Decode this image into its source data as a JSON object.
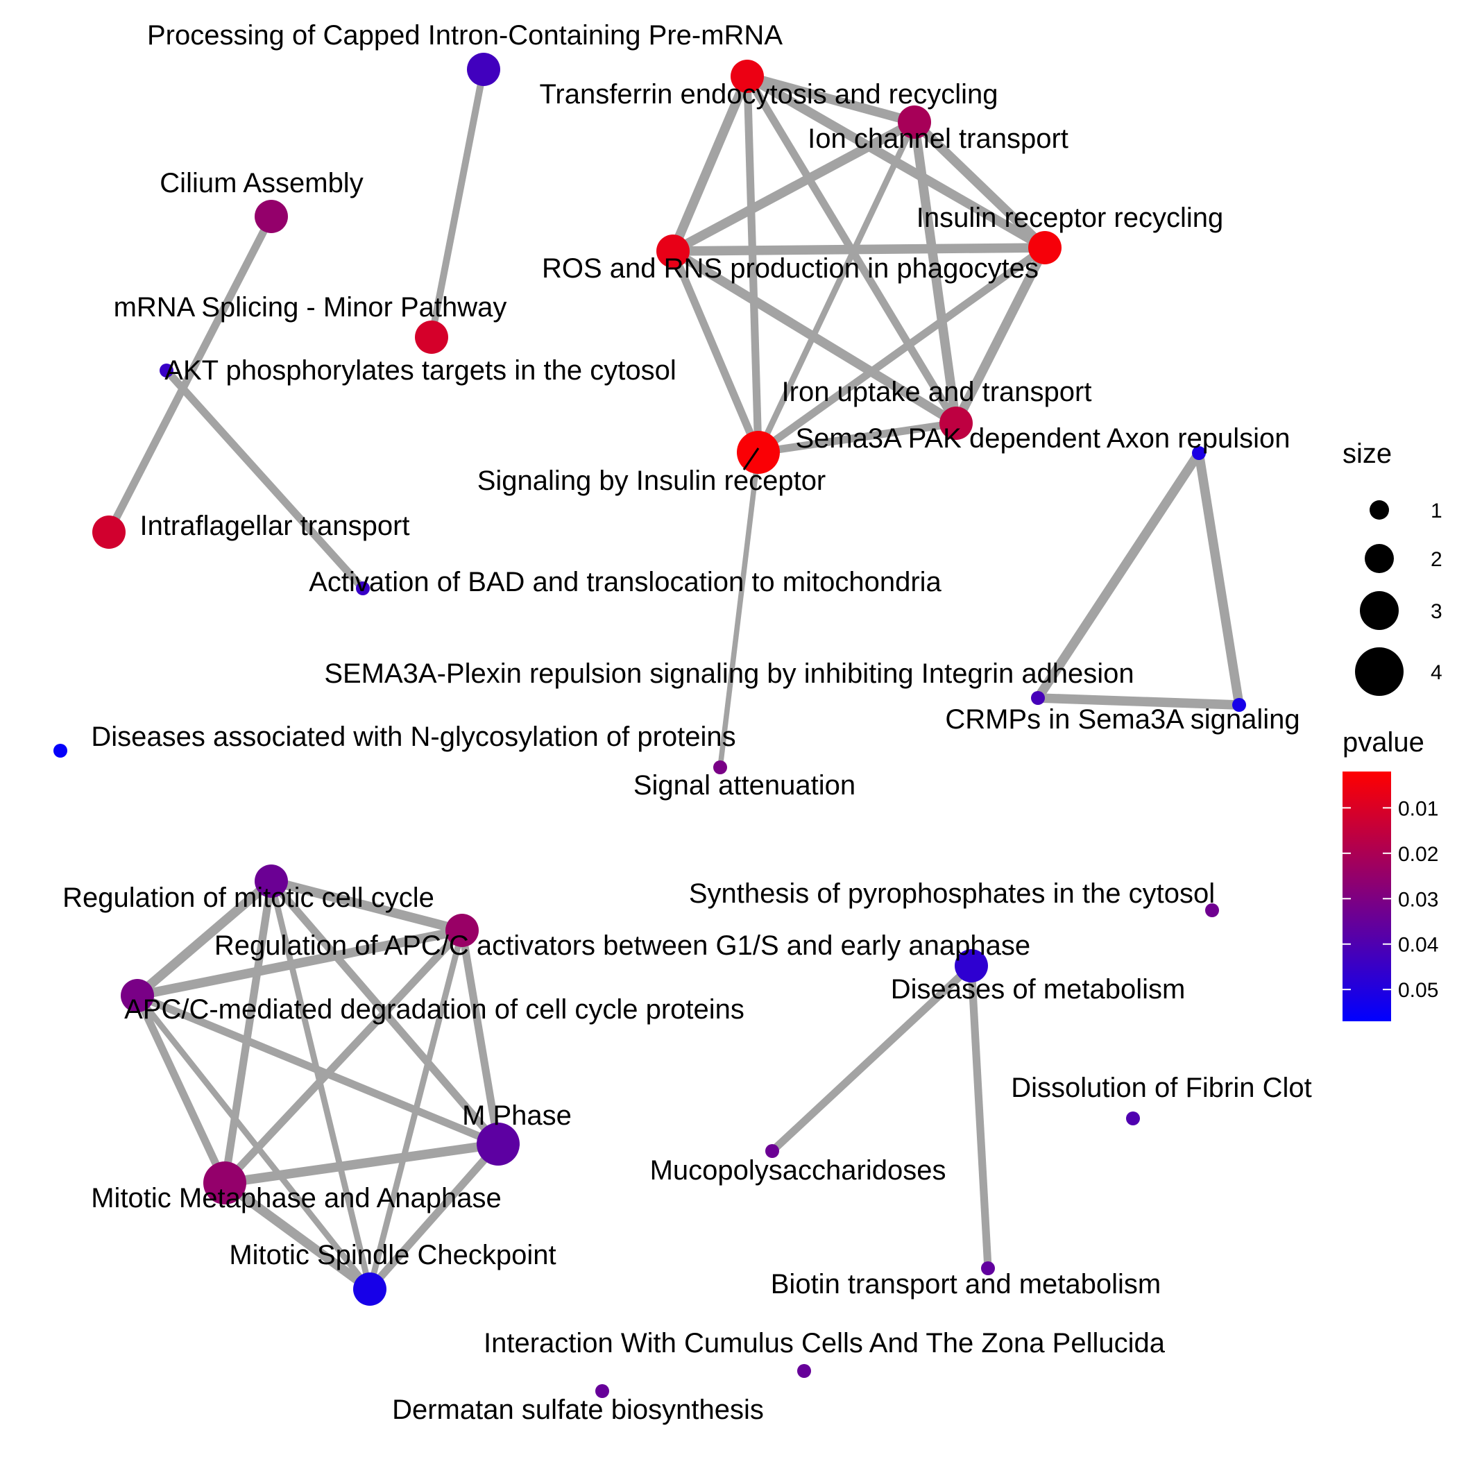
{
  "network": {
    "nodes": [
      {
        "id": "n1",
        "label": "Processing of Capped Intron-Containing Pre-mRNA",
        "size": 3,
        "pvalue": 0.043
      },
      {
        "id": "n2",
        "label": "Transferrin endocytosis and recycling",
        "size": 3,
        "pvalue": 0.006
      },
      {
        "id": "n3",
        "label": "Ion channel transport",
        "size": 3,
        "pvalue": 0.021
      },
      {
        "id": "n4",
        "label": "Cilium Assembly",
        "size": 3,
        "pvalue": 0.025
      },
      {
        "id": "n5",
        "label": "Insulin receptor recycling",
        "size": 3,
        "pvalue": 0.004
      },
      {
        "id": "n6",
        "label": "ROS and RNS production in phagocytes",
        "size": 3,
        "pvalue": 0.007
      },
      {
        "id": "n7",
        "label": "mRNA Splicing - Minor Pathway",
        "size": 3,
        "pvalue": 0.011
      },
      {
        "id": "n8",
        "label": "AKT phosphorylates targets in the cytosol",
        "size": 1,
        "pvalue": 0.045
      },
      {
        "id": "n9",
        "label": "Iron uptake and transport",
        "size": 3,
        "pvalue": 0.016
      },
      {
        "id": "n10",
        "label": "Sema3A PAK dependent Axon repulsion",
        "size": 1,
        "pvalue": 0.051
      },
      {
        "id": "n11",
        "label": "Signaling by Insulin receptor",
        "size": 4,
        "pvalue": 0.003
      },
      {
        "id": "n12",
        "label": "Intraflagellar transport",
        "size": 3,
        "pvalue": 0.012
      },
      {
        "id": "n13",
        "label": "Activation of BAD and translocation to mitochondria",
        "size": 1,
        "pvalue": 0.045
      },
      {
        "id": "n14",
        "label": "SEMA3A-Plexin repulsion signaling by inhibiting Integrin adhesion",
        "size": 1,
        "pvalue": 0.042
      },
      {
        "id": "n15",
        "label": "CRMPs in Sema3A signaling",
        "size": 1,
        "pvalue": 0.052
      },
      {
        "id": "n16",
        "label": "Diseases associated with N-glycosylation of proteins",
        "size": 1,
        "pvalue": 0.056
      },
      {
        "id": "n17",
        "label": "Signal attenuation",
        "size": 1,
        "pvalue": 0.031
      },
      {
        "id": "n18",
        "label": "Regulation of mitotic cell cycle",
        "size": 3,
        "pvalue": 0.034
      },
      {
        "id": "n19",
        "label": "Regulation of APC/C activators between G1/S and early anaphase",
        "size": 3,
        "pvalue": 0.024
      },
      {
        "id": "n20",
        "label": "Synthesis of pyrophosphates in the cytosol",
        "size": 1,
        "pvalue": 0.033
      },
      {
        "id": "n21",
        "label": "Diseases of metabolism",
        "size": 3,
        "pvalue": 0.047
      },
      {
        "id": "n22",
        "label": "APC/C-mediated degradation of cell cycle proteins",
        "size": 3,
        "pvalue": 0.031
      },
      {
        "id": "n23",
        "label": "Dissolution of Fibrin Clot",
        "size": 1,
        "pvalue": 0.04
      },
      {
        "id": "n24",
        "label": "M Phase",
        "size": 4,
        "pvalue": 0.037
      },
      {
        "id": "n25",
        "label": "Mucopolysaccharidoses",
        "size": 1,
        "pvalue": 0.034
      },
      {
        "id": "n26",
        "label": "Mitotic Metaphase and Anaphase",
        "size": 4,
        "pvalue": 0.025
      },
      {
        "id": "n27",
        "label": "Mitotic Spindle Checkpoint",
        "size": 3,
        "pvalue": 0.052
      },
      {
        "id": "n28",
        "label": "Biotin transport and metabolism",
        "size": 1,
        "pvalue": 0.036
      },
      {
        "id": "n29",
        "label": "Interaction With Cumulus Cells And The Zona Pellucida",
        "size": 1,
        "pvalue": 0.035
      },
      {
        "id": "n30",
        "label": "Dermatan sulfate biosynthesis",
        "size": 1,
        "pvalue": 0.035
      }
    ],
    "edges": [
      {
        "source": "n1",
        "target": "n7",
        "weight": 0.5
      },
      {
        "source": "n4",
        "target": "n12",
        "weight": 0.6
      },
      {
        "source": "n8",
        "target": "n13",
        "weight": 0.6
      },
      {
        "source": "n2",
        "target": "n3",
        "weight": 0.8
      },
      {
        "source": "n2",
        "target": "n6",
        "weight": 0.8
      },
      {
        "source": "n2",
        "target": "n5",
        "weight": 0.8
      },
      {
        "source": "n2",
        "target": "n11",
        "weight": 0.6
      },
      {
        "source": "n2",
        "target": "n9",
        "weight": 0.6
      },
      {
        "source": "n3",
        "target": "n6",
        "weight": 0.8
      },
      {
        "source": "n3",
        "target": "n5",
        "weight": 0.8
      },
      {
        "source": "n3",
        "target": "n11",
        "weight": 0.4
      },
      {
        "source": "n3",
        "target": "n9",
        "weight": 0.8
      },
      {
        "source": "n6",
        "target": "n5",
        "weight": 0.8
      },
      {
        "source": "n6",
        "target": "n11",
        "weight": 0.6
      },
      {
        "source": "n6",
        "target": "n9",
        "weight": 0.8
      },
      {
        "source": "n5",
        "target": "n11",
        "weight": 0.6
      },
      {
        "source": "n5",
        "target": "n9",
        "weight": 0.8
      },
      {
        "source": "n11",
        "target": "n9",
        "weight": 0.6
      },
      {
        "source": "n11",
        "target": "n17",
        "weight": 0.3
      },
      {
        "source": "n10",
        "target": "n14",
        "weight": 0.8
      },
      {
        "source": "n10",
        "target": "n15",
        "weight": 0.8
      },
      {
        "source": "n14",
        "target": "n15",
        "weight": 0.8
      },
      {
        "source": "n18",
        "target": "n19",
        "weight": 0.8
      },
      {
        "source": "n18",
        "target": "n22",
        "weight": 0.8
      },
      {
        "source": "n18",
        "target": "n26",
        "weight": 0.6
      },
      {
        "source": "n18",
        "target": "n24",
        "weight": 0.6
      },
      {
        "source": "n18",
        "target": "n27",
        "weight": 0.4
      },
      {
        "source": "n19",
        "target": "n22",
        "weight": 0.8
      },
      {
        "source": "n19",
        "target": "n26",
        "weight": 0.6
      },
      {
        "source": "n19",
        "target": "n24",
        "weight": 0.6
      },
      {
        "source": "n19",
        "target": "n27",
        "weight": 0.4
      },
      {
        "source": "n22",
        "target": "n26",
        "weight": 0.6
      },
      {
        "source": "n22",
        "target": "n24",
        "weight": 0.6
      },
      {
        "source": "n22",
        "target": "n27",
        "weight": 0.4
      },
      {
        "source": "n26",
        "target": "n24",
        "weight": 0.8
      },
      {
        "source": "n26",
        "target": "n27",
        "weight": 0.8
      },
      {
        "source": "n24",
        "target": "n27",
        "weight": 0.6
      },
      {
        "source": "n21",
        "target": "n25",
        "weight": 0.6
      },
      {
        "source": "n21",
        "target": "n28",
        "weight": 0.6
      }
    ]
  },
  "legend": {
    "size_title": "size",
    "size_values": [
      1,
      2,
      3,
      4
    ],
    "pvalue_title": "pvalue",
    "pvalue_ticks": [
      "0.01",
      "0.02",
      "0.03",
      "0.04",
      "0.05"
    ],
    "pvalue_tick_values": [
      0.01,
      0.02,
      0.03,
      0.04,
      0.05
    ],
    "pvalue_range": [
      0.002,
      0.057
    ],
    "color_low_pvalue": "#ff0000",
    "color_high_pvalue": "#0000ff"
  },
  "colors": {
    "edge": "#a3a3a3",
    "text": "#000000",
    "background": "#ffffff"
  }
}
